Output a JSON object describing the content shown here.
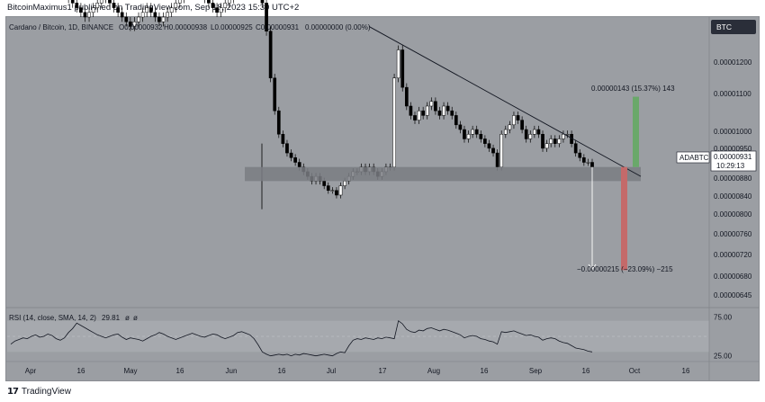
{
  "header": {
    "publish_line": "BitcoinMaximus1 published on TradingView.com, Sep 18, 2023 15:30 UTC+2"
  },
  "legend": {
    "symbol_line": "Cardano / Bitcoin, 1D, BINANCE",
    "o_val": "O0.00000932",
    "h_val": "H0.00000938",
    "l_val": "L0.00000925",
    "c_val": "C0.00000931",
    "chg_val": "0.00000000 (0.00%)"
  },
  "currency_badge": "BTC",
  "price_label": {
    "symbol": "ADABTC",
    "price": "0.00000931",
    "countdown": "10:29:13"
  },
  "annotations": {
    "long_label": "0.00000143 (15.37%) 143",
    "short_label": "−0.00000215 (−23.09%) −215"
  },
  "rsi_legend": {
    "name": "RSI (14, close, SMA, 14, 2)",
    "value": "29.81",
    "extra1": "ø",
    "extra2": "ø"
  },
  "footer": {
    "brand": "TradingView"
  },
  "colors": {
    "background": "#9b9ea3",
    "candle": "#000000",
    "support_band": "#7a7d82",
    "target_up": "#6aa86a",
    "target_down": "#c46a6a",
    "rsi_band": "#a9abb0"
  },
  "chart_data": [
    {
      "type": "candlestick",
      "title": "Cardano / Bitcoin, 1D, BINANCE",
      "y_ticks": [
        "0.00001200",
        "0.00001100",
        "0.00001000",
        "0.00000950",
        "0.00000880",
        "0.00000840",
        "0.00000800",
        "0.00000760",
        "0.00000720",
        "0.00000680",
        "0.00000645"
      ],
      "x_ticks": [
        "Apr",
        "16",
        "May",
        "16",
        "Jun",
        "16",
        "Jul",
        "17",
        "Aug",
        "16",
        "Sep",
        "16",
        "Oct",
        "16"
      ],
      "ylim": [
        6.3e-06,
        1.25e-05
      ],
      "close_series": [
        1.3e-05,
        1.32e-05,
        1.31e-05,
        1.32e-05,
        1.3e-05,
        1.31e-05,
        1.33e-05,
        1.3e-05,
        1.31e-05,
        1.32e-05,
        1.33e-05,
        1.31e-05,
        1.3e-05,
        1.31e-05,
        1.29e-05,
        1.28e-05,
        1.27e-05,
        1.26e-05,
        1.25e-05,
        1.26e-05,
        1.27e-05,
        1.28e-05,
        1.29e-05,
        1.3e-05,
        1.28e-05,
        1.27e-05,
        1.26e-05,
        1.25e-05,
        1.24e-05,
        1.23e-05,
        1.24e-05,
        1.25e-05,
        1.26e-05,
        1.27e-05,
        1.26e-05,
        1.25e-05,
        1.24e-05,
        1.25e-05,
        1.26e-05,
        1.27e-05,
        1.28e-05,
        1.29e-05,
        1.3e-05,
        1.31e-05,
        1.32e-05,
        1.31e-05,
        1.3e-05,
        1.29e-05,
        1.28e-05,
        1.27e-05,
        1.26e-05,
        1.27e-05,
        1.28e-05,
        1.29e-05,
        1.3e-05,
        1.31e-05,
        1.32e-05,
        1.31e-05,
        1.3e-05,
        1.31e-05,
        1.3e-05,
        1.28e-05,
        1.22e-05,
        1.12e-05,
        1.05e-05,
        1e-05,
        9.8e-06,
        9.6e-06,
        9.5e-06,
        9.4e-06,
        9.3e-06,
        9.2e-06,
        9.1e-06,
        9e-06,
        9.1e-06,
        9e-06,
        8.9e-06,
        8.8e-06,
        8.8e-06,
        8.7e-06,
        8.9e-06,
        9e-06,
        9.1e-06,
        9.2e-06,
        9.2e-06,
        9.3e-06,
        9.2e-06,
        9.3e-06,
        9.2e-06,
        9.1e-06,
        9.2e-06,
        9.3e-06,
        9.3e-06,
        1.12e-05,
        1.18e-05,
        1.1e-05,
        1.06e-05,
        1.04e-05,
        1.03e-05,
        1.05e-05,
        1.04e-05,
        1.06e-05,
        1.07e-05,
        1.05e-05,
        1.04e-05,
        1.06e-05,
        1.05e-05,
        1.04e-05,
        1.02e-05,
        1.01e-05,
        9.9e-06,
        1e-05,
        1.01e-05,
        1e-05,
        9.9e-06,
        9.8e-06,
        9.7e-06,
        9.6e-06,
        9.3e-06,
        1e-05,
        1.01e-05,
        1.02e-05,
        1.04e-05,
        1.03e-05,
        1.01e-05,
        9.9e-06,
        1e-05,
        1.01e-05,
        1e-05,
        9.7e-06,
        9.8e-06,
        9.9e-06,
        9.8e-06,
        9.9e-06,
        1e-05,
        1e-05,
        9.8e-06,
        9.6e-06,
        9.5e-06,
        9.4e-06,
        9.4e-06,
        9.3e-06
      ],
      "support_zone": [
        9e-06,
        9.3e-06
      ],
      "descending_trendline": [
        [
          1.23e-05,
          9.3e-06
        ]
      ],
      "current_price": 9.31e-06,
      "long_target": {
        "value": 1.43e-06,
        "percent": 15.37,
        "ticks": 143
      },
      "short_target": {
        "value": -2.15e-06,
        "percent": -23.09,
        "ticks": -215
      }
    },
    {
      "type": "line",
      "title": "RSI (14, close, SMA, 14, 2)",
      "ylim": [
        20,
        80
      ],
      "y_ticks": [
        "75.00",
        "25.00"
      ],
      "band": [
        30,
        70
      ],
      "last_value": 29.81,
      "values": [
        40,
        44,
        46,
        48,
        47,
        50,
        52,
        49,
        50,
        53,
        51,
        47,
        45,
        48,
        55,
        60,
        67,
        64,
        61,
        58,
        55,
        52,
        50,
        48,
        50,
        52,
        53,
        49,
        46,
        48,
        47,
        46,
        44,
        47,
        50,
        52,
        55,
        53,
        50,
        48,
        46,
        48,
        50,
        52,
        54,
        52,
        50,
        49,
        51,
        53,
        52,
        49,
        47,
        49,
        51,
        55,
        56,
        54,
        52,
        47,
        39,
        30,
        27,
        25,
        26,
        27,
        26,
        27,
        25,
        27,
        26,
        28,
        27,
        26,
        25,
        26,
        27,
        26,
        25,
        28,
        30,
        29,
        38,
        45,
        47,
        46,
        48,
        47,
        46,
        48,
        47,
        49,
        48,
        47,
        70,
        66,
        59,
        56,
        55,
        58,
        57,
        60,
        61,
        59,
        57,
        59,
        58,
        56,
        54,
        52,
        48,
        50,
        51,
        50,
        47,
        46,
        44,
        43,
        40,
        56,
        55,
        56,
        57,
        55,
        53,
        51,
        52,
        50,
        49,
        45,
        47,
        48,
        47,
        44,
        42,
        41,
        38,
        35,
        34,
        33,
        31,
        30
      ]
    }
  ]
}
